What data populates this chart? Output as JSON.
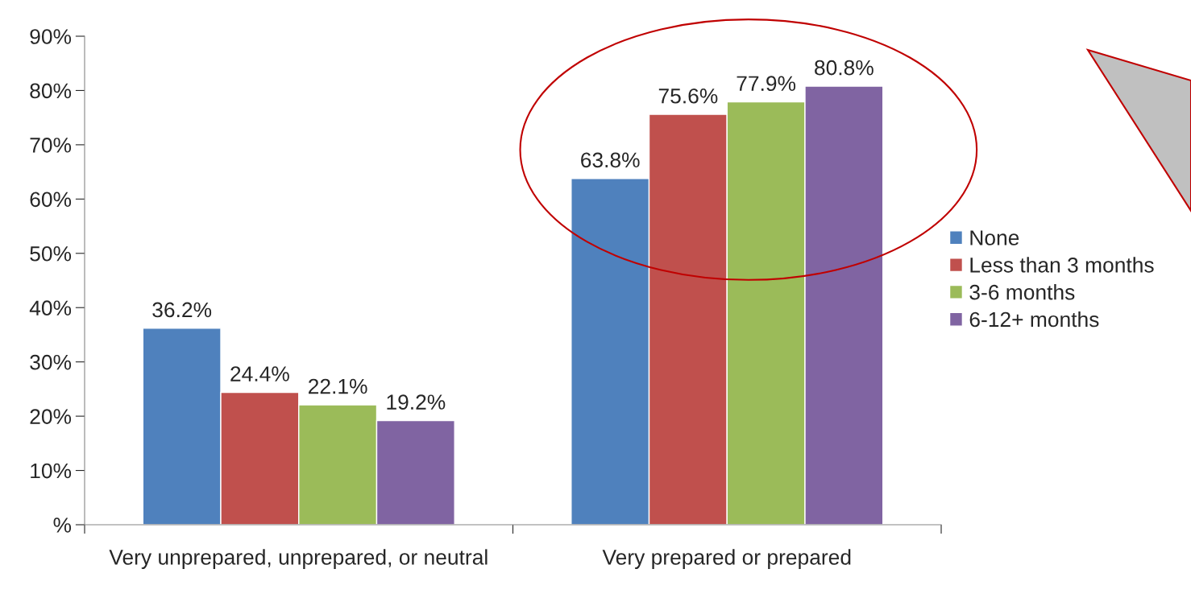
{
  "chart_data": {
    "type": "bar",
    "categories": [
      "Very unprepared, unprepared, or neutral",
      "Very prepared or prepared"
    ],
    "series": [
      {
        "name": "None",
        "color": "#4f81bd",
        "values": [
          36.2,
          63.8
        ],
        "value_labels": [
          "36.2%",
          "63.8%"
        ]
      },
      {
        "name": "Less than 3 months",
        "color": "#c0504d",
        "values": [
          24.4,
          75.6
        ],
        "value_labels": [
          "24.4%",
          "75.6%"
        ]
      },
      {
        "name": "3-6 months",
        "color": "#9bbb59",
        "values": [
          22.1,
          77.9
        ],
        "value_labels": [
          "22.1%",
          "77.9%"
        ]
      },
      {
        "name": "6-12+ months",
        "color": "#8064a2",
        "values": [
          19.2,
          80.8
        ],
        "value_labels": [
          "19.2%",
          "80.8%"
        ]
      }
    ],
    "ylim": [
      0,
      90
    ],
    "yticks": [
      {
        "value": 0,
        "label": "%"
      },
      {
        "value": 10,
        "label": "10%"
      },
      {
        "value": 20,
        "label": "20%"
      },
      {
        "value": 30,
        "label": "30%"
      },
      {
        "value": 40,
        "label": "40%"
      },
      {
        "value": 50,
        "label": "50%"
      },
      {
        "value": 60,
        "label": "60%"
      },
      {
        "value": 70,
        "label": "70%"
      },
      {
        "value": 80,
        "label": "80%"
      },
      {
        "value": 90,
        "label": "90%"
      }
    ],
    "grid": false,
    "legend": "right"
  }
}
